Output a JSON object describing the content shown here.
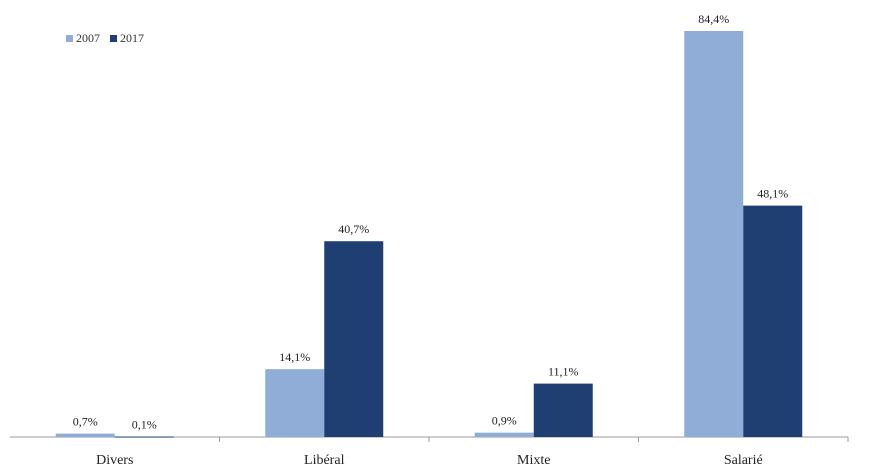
{
  "chart_data": {
    "type": "bar",
    "categories": [
      "Divers",
      "Libéral",
      "Mixte",
      "Salarié"
    ],
    "series": [
      {
        "name": "2007",
        "values": [
          0.7,
          14.1,
          0.9,
          84.4
        ],
        "labels": [
          "0,7%",
          "14,1%",
          "0,9%",
          "84,4%"
        ]
      },
      {
        "name": "2017",
        "values": [
          0.1,
          40.7,
          11.1,
          48.1
        ],
        "labels": [
          "0,1%",
          "40,7%",
          "11,1%",
          "48,1%"
        ]
      }
    ],
    "colors": {
      "2007": "#8fadd6",
      "2017": "#1f3f73"
    },
    "ylim": [
      0,
      84.4
    ],
    "legend_position": "top-left",
    "grid": false
  }
}
